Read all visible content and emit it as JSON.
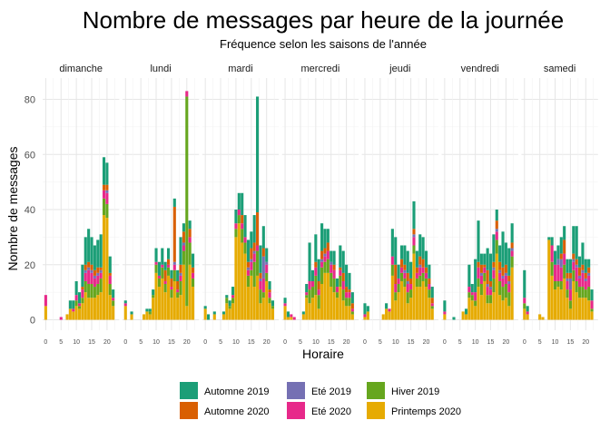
{
  "chart_data": {
    "type": "bar",
    "stacked": true,
    "title": "Nombre de messages par heure de la journée",
    "subtitle": "Fréquence selon les saisons de l'année",
    "xlabel": "Horaire",
    "ylabel": "Nombre de messages",
    "ylim": [
      0,
      87
    ],
    "y_ticks": [
      0,
      20,
      40,
      60,
      80
    ],
    "x_range": [
      -1,
      24
    ],
    "x_ticks": [
      0,
      5,
      10,
      15,
      20
    ],
    "grid": true,
    "legend_position": "bottom",
    "panels": [
      "dimanche",
      "lundi",
      "mardi",
      "mercredi",
      "jeudi",
      "vendredi",
      "samedi"
    ],
    "seasons": [
      {
        "name": "Automne 2019",
        "color": "#1b9e77"
      },
      {
        "name": "Automne 2020",
        "color": "#d95f02"
      },
      {
        "name": "Eté 2019",
        "color": "#7570b3"
      },
      {
        "name": "Eté 2020",
        "color": "#e7298a"
      },
      {
        "name": "Hiver 2019",
        "color": "#66a61e"
      },
      {
        "name": "Printemps 2020",
        "color": "#e6ab02"
      }
    ],
    "data": [
      [
        [
          0,
          0,
          0,
          4,
          0,
          5
        ],
        [
          0,
          0,
          0,
          0,
          0,
          0
        ],
        [
          0,
          0,
          0,
          0,
          0,
          0
        ],
        [
          0,
          0,
          0,
          0,
          0,
          0
        ],
        [
          0,
          0,
          0,
          0,
          0,
          0
        ],
        [
          0,
          0,
          0,
          1,
          0,
          0
        ],
        [
          0,
          0,
          0,
          0,
          0,
          0
        ],
        [
          0,
          0,
          0,
          0,
          0,
          2
        ],
        [
          3,
          0,
          0,
          0,
          0,
          4
        ],
        [
          3,
          0,
          0,
          1,
          0,
          3
        ],
        [
          5,
          0,
          0,
          2,
          2,
          5
        ],
        [
          4,
          0,
          0,
          1,
          1,
          4
        ],
        [
          8,
          1,
          0,
          3,
          2,
          6
        ],
        [
          10,
          2,
          1,
          3,
          4,
          10
        ],
        [
          12,
          2,
          1,
          5,
          5,
          8
        ],
        [
          10,
          2,
          1,
          4,
          5,
          8
        ],
        [
          9,
          2,
          1,
          3,
          4,
          8
        ],
        [
          10,
          2,
          1,
          3,
          4,
          9
        ],
        [
          12,
          1,
          1,
          2,
          5,
          10
        ],
        [
          10,
          2,
          0,
          3,
          6,
          38
        ],
        [
          8,
          2,
          1,
          4,
          5,
          37
        ],
        [
          6,
          1,
          0,
          3,
          4,
          9
        ],
        [
          3,
          0,
          0,
          1,
          2,
          5
        ],
        [
          0,
          0,
          0,
          0,
          0,
          0
        ]
      ],
      [
        [
          1,
          0,
          0,
          1,
          0,
          5
        ],
        [
          0,
          0,
          0,
          0,
          0,
          0
        ],
        [
          1,
          0,
          0,
          0,
          0,
          2
        ],
        [
          0,
          0,
          0,
          0,
          0,
          0
        ],
        [
          0,
          0,
          0,
          0,
          0,
          0
        ],
        [
          0,
          0,
          0,
          0,
          0,
          0
        ],
        [
          0,
          0,
          0,
          0,
          0,
          2
        ],
        [
          1,
          0,
          0,
          0,
          0,
          3
        ],
        [
          1,
          0,
          0,
          0,
          1,
          2
        ],
        [
          2,
          0,
          0,
          0,
          1,
          8
        ],
        [
          5,
          0,
          0,
          1,
          3,
          17
        ],
        [
          5,
          0,
          0,
          1,
          3,
          12
        ],
        [
          6,
          0,
          0,
          1,
          4,
          15
        ],
        [
          3,
          4,
          0,
          1,
          3,
          10
        ],
        [
          4,
          2,
          0,
          1,
          3,
          16
        ],
        [
          3,
          3,
          0,
          1,
          3,
          8
        ],
        [
          3,
          20,
          1,
          2,
          4,
          14
        ],
        [
          4,
          3,
          0,
          1,
          2,
          8
        ],
        [
          10,
          3,
          1,
          2,
          5,
          9
        ],
        [
          3,
          4,
          1,
          2,
          5,
          20
        ],
        [
          0,
          0,
          0,
          2,
          76,
          5
        ],
        [
          3,
          3,
          0,
          2,
          8,
          20
        ],
        [
          5,
          2,
          0,
          2,
          3,
          12
        ],
        [
          0,
          0,
          0,
          0,
          0,
          0
        ]
      ],
      [
        [
          1,
          0,
          0,
          0,
          0,
          4
        ],
        [
          2,
          0,
          0,
          0,
          0,
          0
        ],
        [
          0,
          0,
          0,
          0,
          0,
          0
        ],
        [
          1,
          0,
          0,
          0,
          0,
          2
        ],
        [
          0,
          0,
          0,
          0,
          0,
          0
        ],
        [
          0,
          0,
          0,
          0,
          0,
          0
        ],
        [
          1,
          0,
          0,
          0,
          0,
          2
        ],
        [
          1,
          0,
          0,
          0,
          2,
          6
        ],
        [
          2,
          0,
          0,
          0,
          1,
          4
        ],
        [
          3,
          0,
          0,
          1,
          2,
          6
        ],
        [
          5,
          0,
          0,
          2,
          3,
          30
        ],
        [
          6,
          0,
          0,
          2,
          3,
          35
        ],
        [
          8,
          3,
          0,
          2,
          5,
          28
        ],
        [
          8,
          0,
          0,
          2,
          4,
          24
        ],
        [
          8,
          2,
          1,
          2,
          4,
          12
        ],
        [
          6,
          4,
          1,
          3,
          2,
          16
        ],
        [
          10,
          3,
          1,
          3,
          9,
          12
        ],
        [
          42,
          12,
          0,
          2,
          9,
          16
        ],
        [
          10,
          2,
          1,
          3,
          5,
          6
        ],
        [
          8,
          3,
          8,
          5,
          2,
          8
        ],
        [
          5,
          0,
          1,
          3,
          3,
          14
        ],
        [
          3,
          1,
          0,
          2,
          2,
          6
        ],
        [
          2,
          0,
          0,
          0,
          1,
          4
        ],
        [
          0,
          0,
          0,
          0,
          0,
          0
        ]
      ],
      [
        [
          2,
          0,
          0,
          1,
          0,
          5
        ],
        [
          2,
          0,
          0,
          0,
          0,
          1
        ],
        [
          0,
          0,
          0,
          1,
          0,
          1
        ],
        [
          0,
          0,
          0,
          1,
          0,
          0
        ],
        [
          0,
          0,
          0,
          0,
          0,
          0
        ],
        [
          0,
          0,
          0,
          0,
          0,
          0
        ],
        [
          1,
          0,
          0,
          0,
          0,
          2
        ],
        [
          3,
          0,
          0,
          1,
          1,
          8
        ],
        [
          14,
          0,
          0,
          3,
          5,
          6
        ],
        [
          4,
          0,
          0,
          2,
          4,
          8
        ],
        [
          10,
          2,
          0,
          3,
          7,
          9
        ],
        [
          8,
          3,
          0,
          2,
          5,
          4
        ],
        [
          10,
          3,
          1,
          2,
          6,
          13
        ],
        [
          7,
          2,
          1,
          2,
          4,
          17
        ],
        [
          5,
          3,
          0,
          3,
          5,
          17
        ],
        [
          4,
          0,
          1,
          3,
          5,
          12
        ],
        [
          5,
          2,
          0,
          3,
          5,
          10
        ],
        [
          3,
          0,
          0,
          2,
          2,
          8
        ],
        [
          8,
          1,
          0,
          2,
          4,
          12
        ],
        [
          8,
          3,
          0,
          3,
          4,
          7
        ],
        [
          8,
          2,
          0,
          2,
          3,
          5
        ],
        [
          6,
          1,
          0,
          2,
          3,
          5
        ],
        [
          4,
          2,
          0,
          1,
          1,
          2
        ],
        [
          0,
          0,
          0,
          0,
          0,
          0
        ]
      ],
      [
        [
          4,
          0,
          0,
          1,
          0,
          1
        ],
        [
          2,
          0,
          0,
          0,
          0,
          3
        ],
        [
          0,
          0,
          0,
          0,
          0,
          0
        ],
        [
          0,
          0,
          0,
          0,
          0,
          0
        ],
        [
          0,
          0,
          0,
          0,
          0,
          0
        ],
        [
          0,
          0,
          0,
          0,
          0,
          0
        ],
        [
          0,
          0,
          0,
          0,
          0,
          2
        ],
        [
          2,
          0,
          0,
          0,
          0,
          4
        ],
        [
          0,
          0,
          0,
          1,
          0,
          3
        ],
        [
          10,
          0,
          0,
          3,
          4,
          16
        ],
        [
          10,
          7,
          0,
          3,
          3,
          7
        ],
        [
          5,
          0,
          0,
          2,
          3,
          10
        ],
        [
          5,
          3,
          0,
          2,
          3,
          14
        ],
        [
          7,
          2,
          1,
          2,
          3,
          12
        ],
        [
          8,
          3,
          1,
          3,
          4,
          6
        ],
        [
          6,
          2,
          0,
          2,
          3,
          8
        ],
        [
          10,
          2,
          1,
          3,
          3,
          24
        ],
        [
          6,
          2,
          0,
          2,
          3,
          12
        ],
        [
          8,
          3,
          1,
          3,
          4,
          12
        ],
        [
          8,
          3,
          0,
          2,
          3,
          14
        ],
        [
          6,
          2,
          0,
          2,
          3,
          12
        ],
        [
          5,
          2,
          0,
          2,
          3,
          8
        ],
        [
          4,
          2,
          0,
          1,
          1,
          4
        ],
        [
          0,
          0,
          0,
          0,
          0,
          0
        ]
      ],
      [
        [
          4,
          0,
          0,
          1,
          0,
          2
        ],
        [
          0,
          0,
          0,
          0,
          0,
          0
        ],
        [
          0,
          0,
          0,
          0,
          0,
          0
        ],
        [
          1,
          0,
          0,
          0,
          0,
          0
        ],
        [
          0,
          0,
          0,
          0,
          0,
          0
        ],
        [
          0,
          0,
          0,
          0,
          0,
          0
        ],
        [
          0,
          0,
          0,
          0,
          0,
          3
        ],
        [
          2,
          0,
          0,
          0,
          0,
          2
        ],
        [
          8,
          0,
          0,
          2,
          2,
          8
        ],
        [
          3,
          0,
          0,
          1,
          2,
          7
        ],
        [
          12,
          0,
          0,
          3,
          2,
          5
        ],
        [
          15,
          2,
          0,
          4,
          3,
          12
        ],
        [
          4,
          3,
          1,
          3,
          4,
          9
        ],
        [
          4,
          1,
          0,
          2,
          3,
          14
        ],
        [
          8,
          5,
          1,
          3,
          3,
          6
        ],
        [
          10,
          2,
          1,
          2,
          3,
          6
        ],
        [
          10,
          2,
          1,
          3,
          5,
          10
        ],
        [
          4,
          3,
          1,
          3,
          5,
          24
        ],
        [
          6,
          3,
          1,
          3,
          5,
          9
        ],
        [
          13,
          3,
          1,
          3,
          5,
          7
        ],
        [
          8,
          3,
          1,
          3,
          5,
          8
        ],
        [
          10,
          2,
          1,
          3,
          5,
          5
        ],
        [
          7,
          2,
          1,
          2,
          4,
          19
        ],
        [
          0,
          0,
          0,
          0,
          0,
          0
        ]
      ],
      [
        [
          10,
          0,
          0,
          2,
          2,
          4
        ],
        [
          2,
          0,
          0,
          1,
          0,
          2
        ],
        [
          0,
          0,
          0,
          0,
          0,
          0
        ],
        [
          0,
          0,
          0,
          0,
          0,
          0
        ],
        [
          0,
          0,
          0,
          0,
          0,
          0
        ],
        [
          0,
          0,
          0,
          0,
          0,
          2
        ],
        [
          0,
          0,
          0,
          0,
          0,
          1
        ],
        [
          0,
          0,
          0,
          0,
          0,
          0
        ],
        [
          1,
          0,
          0,
          0,
          0,
          29
        ],
        [
          3,
          0,
          0,
          6,
          5,
          16
        ],
        [
          5,
          0,
          0,
          6,
          3,
          11
        ],
        [
          5,
          0,
          2,
          6,
          2,
          12
        ],
        [
          6,
          2,
          3,
          5,
          3,
          11
        ],
        [
          5,
          5,
          0,
          4,
          5,
          15
        ],
        [
          5,
          2,
          1,
          3,
          3,
          8
        ],
        [
          5,
          2,
          4,
          4,
          3,
          4
        ],
        [
          10,
          2,
          1,
          3,
          4,
          14
        ],
        [
          12,
          2,
          1,
          5,
          4,
          10
        ],
        [
          4,
          3,
          1,
          3,
          4,
          8
        ],
        [
          8,
          2,
          1,
          5,
          4,
          8
        ],
        [
          5,
          2,
          1,
          3,
          3,
          8
        ],
        [
          3,
          2,
          1,
          4,
          5,
          7
        ],
        [
          4,
          0,
          0,
          3,
          1,
          3
        ],
        [
          0,
          0,
          0,
          0,
          0,
          0
        ]
      ]
    ]
  }
}
